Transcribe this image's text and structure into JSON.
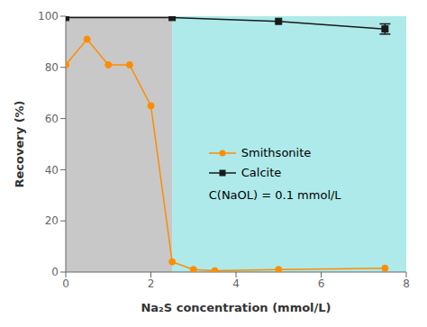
{
  "chart_data": {
    "type": "line",
    "xlabel": "Na₂S concentration (mmol/L)",
    "ylabel": "Recovery (%)",
    "annotation": "C(NaOL) = 0.1 mmol/L",
    "xlim": [
      0,
      8
    ],
    "ylim": [
      0,
      100
    ],
    "xticks": [
      0,
      2,
      4,
      6,
      8
    ],
    "yticks": [
      0,
      20,
      40,
      60,
      80,
      100
    ],
    "grid": false,
    "legend": "center",
    "regions": [
      {
        "xmin": 0,
        "xmax": 2.5,
        "color": "#c8c8c8"
      },
      {
        "xmin": 2.5,
        "xmax": 8,
        "color": "#aeeaea"
      }
    ],
    "series": [
      {
        "name": "Smithsonite",
        "color": "#FF8C00",
        "marker": "circle",
        "x": [
          0,
          0.5,
          1.0,
          1.5,
          2.0,
          2.5,
          3.0,
          3.5,
          5.0,
          7.5
        ],
        "values": [
          81,
          91,
          81,
          81,
          65,
          4,
          1,
          0.5,
          1,
          1.5
        ]
      },
      {
        "name": "Calcite",
        "color": "#1a1a1a",
        "marker": "square",
        "x": [
          0,
          2.5,
          5.0,
          7.5
        ],
        "values": [
          99.5,
          99.5,
          98,
          95
        ],
        "errors": [
          0,
          0,
          0,
          2.0
        ]
      }
    ]
  }
}
